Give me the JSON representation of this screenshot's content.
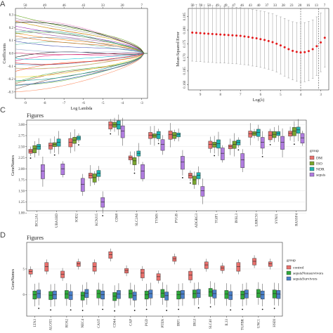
{
  "chart_data": [
    {
      "panel": "A",
      "type": "line",
      "xlabel": "Log Lambda",
      "ylabel": "Coefficients",
      "x_ticks": [
        -9,
        -8,
        -7,
        -6,
        -5,
        -4,
        -3
      ],
      "y_ticks": [
        -0.3,
        -0.2,
        -0.1,
        0.0,
        0.1,
        0.2,
        0.3
      ],
      "top_ticks": [
        "50",
        "49",
        "46",
        "43",
        "33",
        "20",
        "7"
      ],
      "xlim": [
        -9.5,
        -2.7
      ],
      "ylim": [
        -0.35,
        0.35
      ]
    },
    {
      "panel": "B",
      "type": "scatter",
      "xlabel": "Log(λ)",
      "ylabel": "Mean-Squared Error",
      "x_ticks": [
        9,
        8,
        7,
        6,
        5,
        4,
        3
      ],
      "y_ticks": [
        0.16,
        0.165,
        0.17,
        0.175,
        0.18,
        0.185
      ],
      "top_ticks": [
        "50",
        "50",
        "50",
        "49",
        "49",
        "47",
        "46",
        "43",
        "40",
        "37",
        "33",
        "28",
        "23",
        "20",
        "16",
        "13",
        "7"
      ],
      "xlim": [
        9.6,
        2.6
      ],
      "ylim": [
        0.158,
        0.188
      ],
      "vlines": [
        4.0,
        3.1
      ],
      "points": [
        [
          9.4,
          0.1791
        ],
        [
          9.2,
          0.179
        ],
        [
          9.0,
          0.1789
        ],
        [
          8.8,
          0.1788
        ],
        [
          8.6,
          0.1787
        ],
        [
          8.4,
          0.1786
        ],
        [
          8.2,
          0.1785
        ],
        [
          8.0,
          0.1784
        ],
        [
          7.8,
          0.1783
        ],
        [
          7.6,
          0.1782
        ],
        [
          7.4,
          0.1781
        ],
        [
          7.2,
          0.178
        ],
        [
          7.0,
          0.1779
        ],
        [
          6.8,
          0.1777
        ],
        [
          6.6,
          0.1775
        ],
        [
          6.4,
          0.1772
        ],
        [
          6.2,
          0.177
        ],
        [
          6.0,
          0.1767
        ],
        [
          5.8,
          0.1764
        ],
        [
          5.6,
          0.176
        ],
        [
          5.4,
          0.1756
        ],
        [
          5.2,
          0.175
        ],
        [
          5.0,
          0.1744
        ],
        [
          4.8,
          0.1737
        ],
        [
          4.6,
          0.173
        ],
        [
          4.4,
          0.1724
        ],
        [
          4.2,
          0.172
        ],
        [
          4.0,
          0.1718
        ],
        [
          3.8,
          0.1719
        ],
        [
          3.6,
          0.1723
        ],
        [
          3.4,
          0.173
        ],
        [
          3.2,
          0.1741
        ],
        [
          3.0,
          0.1755
        ],
        [
          2.8,
          0.1772
        ]
      ],
      "err": [
        0.0105,
        0.0105,
        0.0105,
        0.0105,
        0.0105,
        0.0105,
        0.0105,
        0.0105,
        0.0104,
        0.0104,
        0.0104,
        0.0104,
        0.0104,
        0.0104,
        0.0104,
        0.0104,
        0.0104,
        0.0104,
        0.0104,
        0.0104,
        0.0104,
        0.0104,
        0.0105,
        0.0106,
        0.0106,
        0.0107,
        0.0108,
        0.0109,
        0.0109,
        0.0109,
        0.0108,
        0.0108,
        0.0108,
        0.0108
      ]
    },
    {
      "panel": "C",
      "type": "box",
      "title": "Figures",
      "ylabel": "GeneNames",
      "ylim": [
        1.05,
        3.1
      ],
      "y_ticks": [
        1.0,
        1.25,
        1.5,
        1.75,
        2.0,
        2.25,
        2.5,
        2.75,
        3.0
      ],
      "categories": [
        "BCL2A1",
        "UBA1BD",
        "SOD2",
        "KCNJ15",
        "CD68",
        "SLC2A6",
        "TYMS",
        "PYGB",
        "ADGRG3",
        "TGIF1",
        "INSL3",
        "LRRC50",
        "SYNJ1",
        "RASSF4"
      ],
      "legend_title": "group",
      "series": [
        {
          "name": "DM",
          "color": "#e8706c",
          "medians": [
            2.4,
            2.52,
            2.6,
            1.85,
            2.99,
            2.25,
            2.76,
            2.77,
            1.85,
            2.55,
            2.5,
            2.79,
            2.76,
            2.8
          ]
        },
        {
          "name": "ISO",
          "color": "#78a52e",
          "medians": [
            2.45,
            2.55,
            2.65,
            1.8,
            3.0,
            2.18,
            2.75,
            2.76,
            1.75,
            2.55,
            2.55,
            2.8,
            2.78,
            2.85
          ]
        },
        {
          "name": "NDR",
          "color": "#20b4b0",
          "medians": [
            2.5,
            2.6,
            2.7,
            1.9,
            3.0,
            2.35,
            2.77,
            2.77,
            1.85,
            2.57,
            2.6,
            2.82,
            2.8,
            2.88
          ]
        },
        {
          "name": "sepsis",
          "color": "#b07ce0",
          "medians": [
            1.95,
            2.0,
            1.65,
            1.25,
            2.85,
            1.95,
            2.55,
            2.15,
            1.5,
            2.35,
            2.2,
            2.6,
            2.6,
            2.7
          ]
        }
      ]
    },
    {
      "panel": "D",
      "type": "box",
      "title": "Figures",
      "ylabel": "GeneNames",
      "ylim": [
        -4.2,
        10.2
      ],
      "y_ticks": [
        0,
        5
      ],
      "categories": [
        "LTA3",
        "ALOX5",
        "ROS2",
        "NEC4",
        "CAST",
        "CD44",
        "CAP",
        "PGD",
        "PTEN",
        "IRF1",
        "IRGI",
        "SLC40",
        "IL33",
        "TGFBR",
        "UNC1",
        "HSDI"
      ],
      "legend_title": "group",
      "series": [
        {
          "name": "control",
          "color": "#e8706c",
          "medians": [
            4.5,
            5.5,
            4.0,
            6.0,
            5.5,
            7.8,
            4.7,
            4.2,
            3.5,
            7.0,
            3.8,
            5.8,
            5.2,
            5.5,
            6.5,
            6.0
          ]
        },
        {
          "name": "sepsisNonsurvivors",
          "color": "#2fa83c",
          "medians": [
            0.0,
            -0.1,
            0.1,
            -0.2,
            0.2,
            -0.3,
            0.2,
            0.0,
            0.3,
            0.0,
            0.2,
            0.5,
            0.1,
            0.0,
            0.3,
            0.2
          ]
        },
        {
          "name": "sepsisSurvivors",
          "color": "#4a7fc8",
          "medians": [
            0.2,
            0.0,
            -0.1,
            0.3,
            0.0,
            0.1,
            -0.2,
            0.2,
            -0.2,
            0.1,
            0.3,
            0.2,
            -0.1,
            0.2,
            0.0,
            0.1
          ]
        }
      ]
    }
  ]
}
